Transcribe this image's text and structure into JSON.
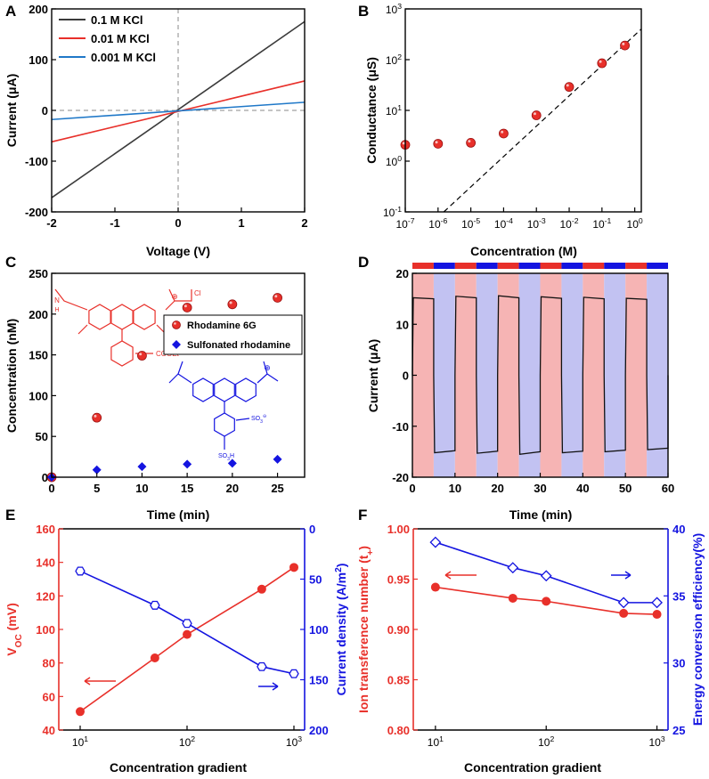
{
  "colors": {
    "axis": "#000000",
    "red": "#e8302a",
    "blue": "#1414e0",
    "dark": "#3b3b3b",
    "light_blue": "#1f78c8",
    "pink_band": "#f6b4b4",
    "lavender_band": "#c2c2f2",
    "guide": "#888888"
  },
  "chart_data": [
    {
      "panel": "A",
      "type": "line",
      "xlabel": "Voltage (V)",
      "ylabel": "Current (μA)",
      "xlim": [
        -2,
        2
      ],
      "ylim": [
        -200,
        200
      ],
      "xticks": [
        -2,
        -1,
        0,
        1,
        2
      ],
      "yticks": [
        -200,
        -100,
        0,
        100,
        200
      ],
      "legend_position": "top-left",
      "series": [
        {
          "name": "0.1 M KCl",
          "x": [
            -2,
            2
          ],
          "y": [
            -172,
            175
          ]
        },
        {
          "name": "0.01 M KCl",
          "x": [
            -2,
            2
          ],
          "y": [
            -62,
            58
          ]
        },
        {
          "name": "0.001 M KCl",
          "x": [
            -2,
            2
          ],
          "y": [
            -18,
            16
          ]
        }
      ]
    },
    {
      "panel": "B",
      "type": "scatter",
      "xlabel": "Concentration (M)",
      "ylabel": "Conductance (μS)",
      "xscale": "log",
      "yscale": "log",
      "xlim_exp": [
        -7,
        0.2
      ],
      "ylim_exp": [
        -1,
        3
      ],
      "xtick_exps": [
        "-7",
        "-6",
        "-5",
        "-4",
        "-3",
        "-2",
        "-1",
        "0"
      ],
      "ytick_exps": [
        "-1",
        "0",
        "1",
        "2",
        "3"
      ],
      "tick_base": "10",
      "x": [
        1e-07,
        1e-06,
        1e-05,
        0.0001,
        0.001,
        0.01,
        0.1,
        0.5
      ],
      "y": [
        2.1,
        2.2,
        2.3,
        3.5,
        8.0,
        29,
        85,
        190
      ],
      "reference_line": {
        "x": [
          1.5e-06,
          1.58
        ],
        "y": [
          0.1,
          400
        ]
      }
    },
    {
      "panel": "C",
      "type": "scatter",
      "xlabel": "Time (min)",
      "ylabel": "Concentration (nM)",
      "xlim": [
        0,
        28
      ],
      "ylim": [
        0,
        250
      ],
      "xticks": [
        0,
        5,
        10,
        15,
        20,
        25
      ],
      "yticks": [
        0,
        50,
        100,
        150,
        200,
        250
      ],
      "series": [
        {
          "name": "Rhodamine 6G",
          "x": [
            0,
            5,
            10,
            15,
            20,
            25
          ],
          "y": [
            0,
            73,
            149,
            208,
            212,
            220
          ]
        },
        {
          "name": "Sulfonated rhodamine",
          "x": [
            0,
            5,
            10,
            15,
            20,
            25
          ],
          "y": [
            0,
            9,
            13,
            16,
            17,
            22
          ]
        }
      ],
      "structures": {
        "r6g_label": "COOEt",
        "r6g_counterion": "Cl",
        "charge": "⊕",
        "sulfo_labels": [
          "SO",
          "3",
          "⊖",
          "SO",
          "3",
          "H"
        ],
        "nh_label": "N",
        "nh_h": "H"
      }
    },
    {
      "panel": "D",
      "type": "line",
      "xlabel": "Time (min)",
      "ylabel": "Current (μA)",
      "xlim": [
        0,
        60
      ],
      "ylim": [
        -20,
        20
      ],
      "xticks": [
        0,
        10,
        20,
        30,
        40,
        50,
        60
      ],
      "yticks": [
        -20,
        -10,
        0,
        10,
        20
      ],
      "switch_period_min": 5,
      "positive_segments": [
        {
          "t": [
            0,
            5
          ],
          "y": [
            15.2,
            15.0
          ]
        },
        {
          "t": [
            10,
            15
          ],
          "y": [
            15.5,
            15.2
          ]
        },
        {
          "t": [
            20,
            25
          ],
          "y": [
            15.6,
            15.2
          ]
        },
        {
          "t": [
            30,
            35
          ],
          "y": [
            15.4,
            15.1
          ]
        },
        {
          "t": [
            40,
            45
          ],
          "y": [
            15.3,
            15.0
          ]
        },
        {
          "t": [
            50,
            55
          ],
          "y": [
            15.1,
            14.9
          ]
        }
      ],
      "negative_segments": [
        {
          "t": [
            5,
            10
          ],
          "y": [
            -15.2,
            -14.8
          ]
        },
        {
          "t": [
            15,
            20
          ],
          "y": [
            -15.3,
            -14.9
          ]
        },
        {
          "t": [
            25,
            30
          ],
          "y": [
            -15.5,
            -15.0
          ]
        },
        {
          "t": [
            35,
            40
          ],
          "y": [
            -15.2,
            -14.9
          ]
        },
        {
          "t": [
            45,
            50
          ],
          "y": [
            -15.0,
            -14.7
          ]
        },
        {
          "t": [
            55,
            60
          ],
          "y": [
            -14.6,
            -14.3
          ]
        }
      ]
    },
    {
      "panel": "E",
      "type": "line",
      "dual_axis": true,
      "xlabel": "Concentration gradient",
      "xscale": "log",
      "xlim_exp": [
        0.8,
        3.1
      ],
      "xtick_exps": [
        "1",
        "2",
        "3"
      ],
      "tick_base": "10",
      "ylabel_left_main": "V",
      "ylabel_left_sub": "OC",
      "ylabel_left_unit": " (mV)",
      "ylim_left": [
        40,
        160
      ],
      "yticks_left": [
        40,
        60,
        80,
        100,
        120,
        140,
        160
      ],
      "ylabel_right": "Current density (A/m",
      "ylabel_right_sup": "2",
      "ylabel_right_end": ")",
      "ylim_right": [
        0,
        200
      ],
      "right_inverted": true,
      "yticks_right": [
        0,
        50,
        100,
        150,
        200
      ],
      "x": [
        10,
        50,
        100,
        500,
        1000
      ],
      "left_values": [
        51,
        83,
        97,
        124,
        137
      ],
      "right_values": [
        42,
        76,
        94,
        137,
        144
      ]
    },
    {
      "panel": "F",
      "type": "line",
      "dual_axis": true,
      "xlabel": "Concentration gradient",
      "xscale": "log",
      "xlim_exp": [
        0.8,
        3.1
      ],
      "xtick_exps": [
        "1",
        "2",
        "3"
      ],
      "tick_base": "10",
      "ylabel_left": "Ion transference number (t",
      "ylabel_left_sub": "+",
      "ylabel_left_end": ")",
      "ylim_left": [
        0.8,
        1.0
      ],
      "yticks_left": [
        "0.80",
        "0.85",
        "0.90",
        "0.95",
        "1.00"
      ],
      "ylabel_right": "Energy conversion efficiency(%)",
      "ylim_right": [
        25,
        40
      ],
      "yticks_right": [
        25,
        30,
        35,
        40
      ],
      "x": [
        10,
        50,
        100,
        500,
        1000
      ],
      "left_values": [
        0.942,
        0.931,
        0.928,
        0.916,
        0.915
      ],
      "right_values": [
        39.0,
        37.1,
        36.5,
        34.5,
        34.5
      ]
    }
  ],
  "panel_letters": [
    "A",
    "B",
    "C",
    "D",
    "E",
    "F"
  ]
}
